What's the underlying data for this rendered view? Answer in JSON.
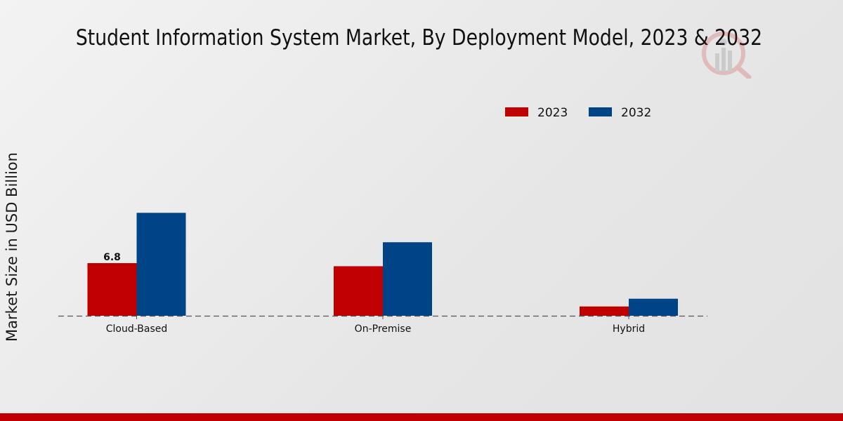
{
  "chart_data": {
    "type": "bar",
    "title": "Student Information System Market, By Deployment Model, 2023 & 2032",
    "xlabel": "",
    "ylabel": "Market Size in USD Billion",
    "categories": [
      "Cloud-Based",
      "On-Premise",
      "Hybrid"
    ],
    "series": [
      {
        "name": "2023",
        "color": "#c00000",
        "values": [
          6.8,
          6.4,
          1.2
        ]
      },
      {
        "name": "2032",
        "color": "#004488",
        "values": [
          13.3,
          9.5,
          2.2
        ]
      }
    ],
    "data_labels": [
      {
        "series": "2023",
        "category": "Cloud-Based",
        "text": "6.8"
      }
    ],
    "ylim": [
      0,
      15
    ],
    "grid": false,
    "legend_position": "top-right",
    "baseline_style": "dashed"
  },
  "branding": {
    "footer_color": "#c00000",
    "watermark": "market-research-logo-icon"
  }
}
